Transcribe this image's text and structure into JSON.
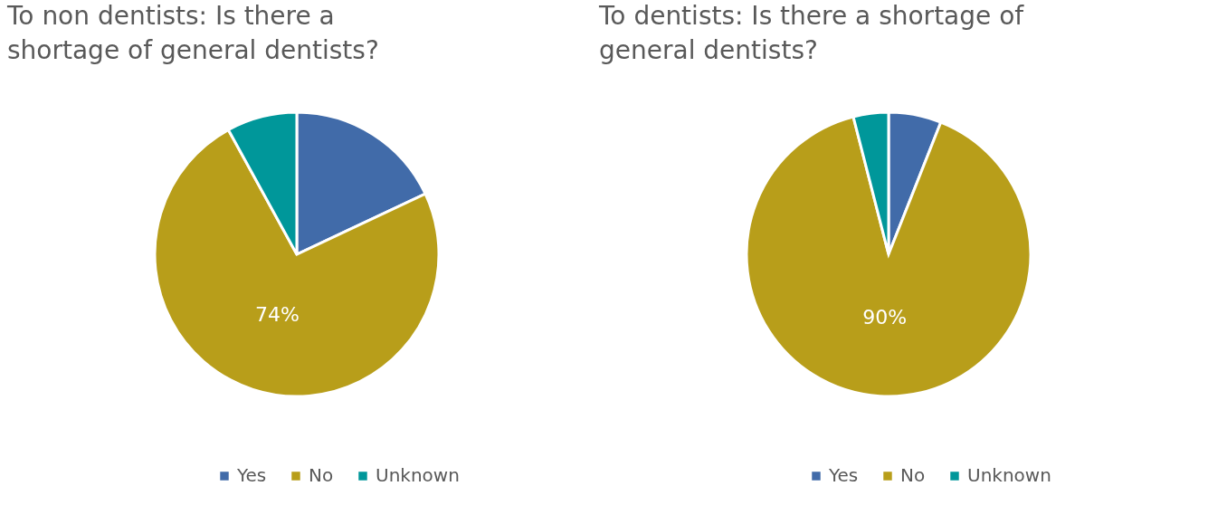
{
  "chart_data": [
    {
      "type": "pie",
      "title": "To non dentists: Is there a shortage of general dentists?",
      "categories": [
        "Yes",
        "No",
        "Unknown"
      ],
      "values": [
        18,
        74,
        8
      ],
      "colors": [
        "#416ba9",
        "#b89e1a",
        "#00979a"
      ],
      "value_labels": [
        null,
        "74%",
        null
      ],
      "legend": "bottom"
    },
    {
      "type": "pie",
      "title": "To dentists: Is there a shortage of general dentists?",
      "categories": [
        "Yes",
        "No",
        "Unknown"
      ],
      "values": [
        6,
        90,
        4
      ],
      "colors": [
        "#416ba9",
        "#b89e1a",
        "#00979a"
      ],
      "value_labels": [
        null,
        "90%",
        null
      ],
      "legend": "bottom"
    }
  ]
}
